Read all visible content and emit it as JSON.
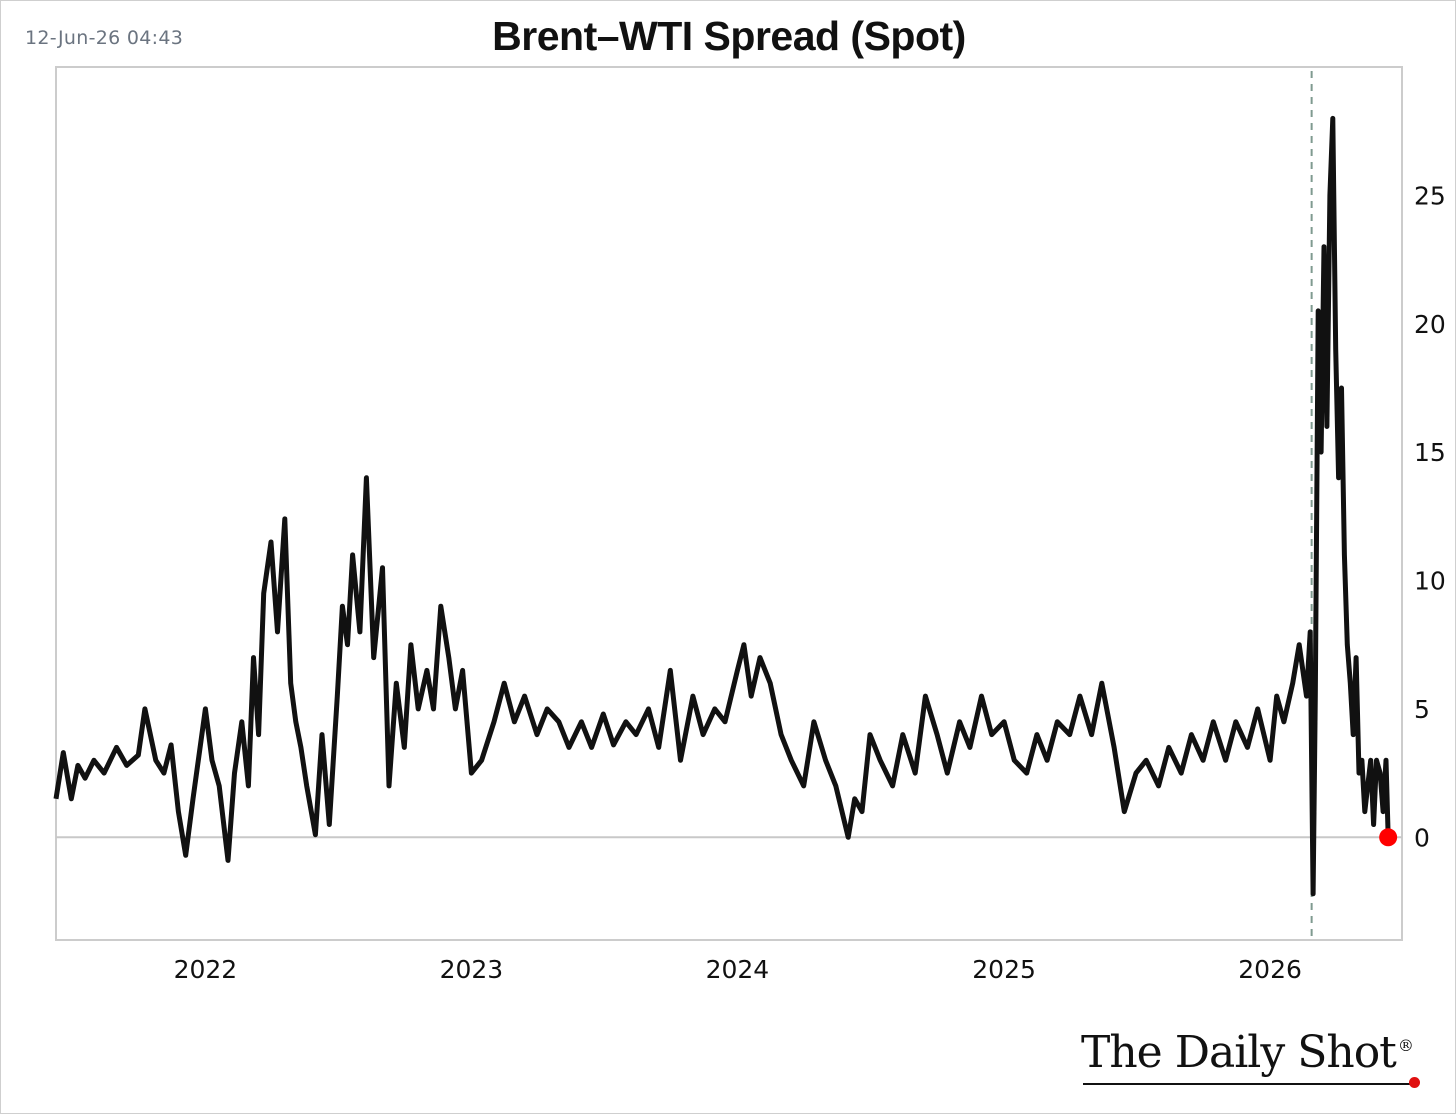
{
  "timestamp": "12-Jun-26 04:43",
  "brand": {
    "name": "The Daily Shot",
    "registered_mark": "®"
  },
  "colors": {
    "line": "#111111",
    "last_point": "#ff0000",
    "reference_line": "#7f9a90",
    "zero_line": "#c8c8c8",
    "frame": "#cccccc"
  },
  "chart_data": {
    "type": "line",
    "title": "Brent–WTI Spread (Spot)",
    "xlabel": "",
    "ylabel": "",
    "x_ticks": [
      "2022",
      "2023",
      "2024",
      "2025",
      "2026"
    ],
    "y_ticks": [
      0,
      5,
      10,
      15,
      20,
      25
    ],
    "xlim": [
      "2021-06-10",
      "2026-07-01"
    ],
    "ylim": [
      -4,
      30
    ],
    "y_axis_side": "right",
    "grid": false,
    "zero_line": true,
    "vertical_reference_date": "2026-02-27",
    "last_point_marker": true,
    "series": [
      {
        "x": [
          "2021-06-10",
          "2021-06-20",
          "2021-07-01",
          "2021-07-10",
          "2021-07-20",
          "2021-08-01",
          "2021-08-15",
          "2021-09-01",
          "2021-09-15",
          "2021-10-01",
          "2021-10-10",
          "2021-10-25",
          "2021-11-05",
          "2021-11-15",
          "2021-11-25",
          "2021-12-05",
          "2021-12-15",
          "2022-01-01",
          "2022-01-10",
          "2022-01-20",
          "2022-02-01",
          "2022-02-10",
          "2022-02-20",
          "2022-03-01",
          "2022-03-08",
          "2022-03-15",
          "2022-03-22",
          "2022-04-01",
          "2022-04-10",
          "2022-04-20",
          "2022-04-28",
          "2022-05-05",
          "2022-05-12",
          "2022-05-20",
          "2022-06-01",
          "2022-06-10",
          "2022-06-20",
          "2022-07-01",
          "2022-07-08",
          "2022-07-15",
          "2022-07-22",
          "2022-08-01",
          "2022-08-10",
          "2022-08-20",
          "2022-09-01",
          "2022-09-10",
          "2022-09-20",
          "2022-10-01",
          "2022-10-10",
          "2022-10-20",
          "2022-11-01",
          "2022-11-10",
          "2022-11-20",
          "2022-12-01",
          "2022-12-10",
          "2022-12-20",
          "2023-01-01",
          "2023-01-15",
          "2023-02-01",
          "2023-02-15",
          "2023-03-01",
          "2023-03-15",
          "2023-04-01",
          "2023-04-15",
          "2023-05-01",
          "2023-05-15",
          "2023-06-01",
          "2023-06-15",
          "2023-07-01",
          "2023-07-15",
          "2023-08-01",
          "2023-08-15",
          "2023-09-01",
          "2023-09-15",
          "2023-10-01",
          "2023-10-15",
          "2023-11-01",
          "2023-11-15",
          "2023-12-01",
          "2023-12-15",
          "2024-01-01",
          "2024-01-10",
          "2024-01-20",
          "2024-02-01",
          "2024-02-15",
          "2024-03-01",
          "2024-03-15",
          "2024-04-01",
          "2024-04-15",
          "2024-05-01",
          "2024-05-15",
          "2024-06-01",
          "2024-06-10",
          "2024-06-20",
          "2024-07-01",
          "2024-07-15",
          "2024-08-01",
          "2024-08-15",
          "2024-09-01",
          "2024-09-15",
          "2024-10-01",
          "2024-10-15",
          "2024-11-01",
          "2024-11-15",
          "2024-12-01",
          "2024-12-15",
          "2025-01-01",
          "2025-01-15",
          "2025-02-01",
          "2025-02-15",
          "2025-03-01",
          "2025-03-15",
          "2025-04-01",
          "2025-04-15",
          "2025-05-01",
          "2025-05-15",
          "2025-06-01",
          "2025-06-15",
          "2025-07-01",
          "2025-07-15",
          "2025-08-01",
          "2025-08-15",
          "2025-09-01",
          "2025-09-15",
          "2025-10-01",
          "2025-10-15",
          "2025-11-01",
          "2025-11-15",
          "2025-12-01",
          "2025-12-15",
          "2026-01-01",
          "2026-01-10",
          "2026-01-20",
          "2026-02-01",
          "2026-02-10",
          "2026-02-20",
          "2026-02-25",
          "2026-03-01",
          "2026-03-04",
          "2026-03-08",
          "2026-03-12",
          "2026-03-16",
          "2026-03-20",
          "2026-03-24",
          "2026-03-28",
          "2026-04-01",
          "2026-04-05",
          "2026-04-09",
          "2026-04-13",
          "2026-04-17",
          "2026-04-21",
          "2026-04-25",
          "2026-04-29",
          "2026-05-03",
          "2026-05-07",
          "2026-05-11",
          "2026-05-15",
          "2026-05-19",
          "2026-05-23",
          "2026-05-27",
          "2026-06-01",
          "2026-06-05",
          "2026-06-09",
          "2026-06-12"
        ],
        "values": [
          1.5,
          3.3,
          1.5,
          2.8,
          2.3,
          3.0,
          2.5,
          3.5,
          2.8,
          3.2,
          5.0,
          3.0,
          2.5,
          3.6,
          1.0,
          -0.7,
          1.5,
          5.0,
          3.0,
          2.0,
          -0.9,
          2.5,
          4.5,
          2.0,
          7.0,
          4.0,
          9.5,
          11.5,
          8.0,
          12.4,
          6.0,
          4.5,
          3.5,
          2.0,
          0.1,
          4.0,
          0.5,
          5.5,
          9.0,
          7.5,
          11.0,
          8.0,
          14.0,
          7.0,
          10.5,
          2.0,
          6.0,
          3.5,
          7.5,
          5.0,
          6.5,
          5.0,
          9.0,
          7.0,
          5.0,
          6.5,
          2.5,
          3.0,
          4.5,
          6.0,
          4.5,
          5.5,
          4.0,
          5.0,
          4.5,
          3.5,
          4.5,
          3.5,
          4.8,
          3.6,
          4.5,
          4.0,
          5.0,
          3.5,
          6.5,
          3.0,
          5.5,
          4.0,
          5.0,
          4.5,
          6.5,
          7.5,
          5.5,
          7.0,
          6.0,
          4.0,
          3.0,
          2.0,
          4.5,
          3.0,
          2.0,
          0.0,
          1.5,
          1.0,
          4.0,
          3.0,
          2.0,
          4.0,
          2.5,
          5.5,
          4.0,
          2.5,
          4.5,
          3.5,
          5.5,
          4.0,
          4.5,
          3.0,
          2.5,
          4.0,
          3.0,
          4.5,
          4.0,
          5.5,
          4.0,
          6.0,
          3.5,
          1.0,
          2.5,
          3.0,
          2.0,
          3.5,
          2.5,
          4.0,
          3.0,
          4.5,
          3.0,
          4.5,
          3.5,
          5.0,
          3.0,
          5.5,
          4.5,
          6.0,
          7.5,
          5.5,
          8.0,
          -2.2,
          5.5,
          20.5,
          15.0,
          23.0,
          16.0,
          25.0,
          28.0,
          19.0,
          14.0,
          17.5,
          11.0,
          7.5,
          6.0,
          4.0,
          7.0,
          2.5,
          3.0,
          1.0,
          2.0,
          3.0,
          0.5,
          3.0,
          2.5,
          1.0,
          3.0,
          0.0
        ]
      }
    ]
  }
}
